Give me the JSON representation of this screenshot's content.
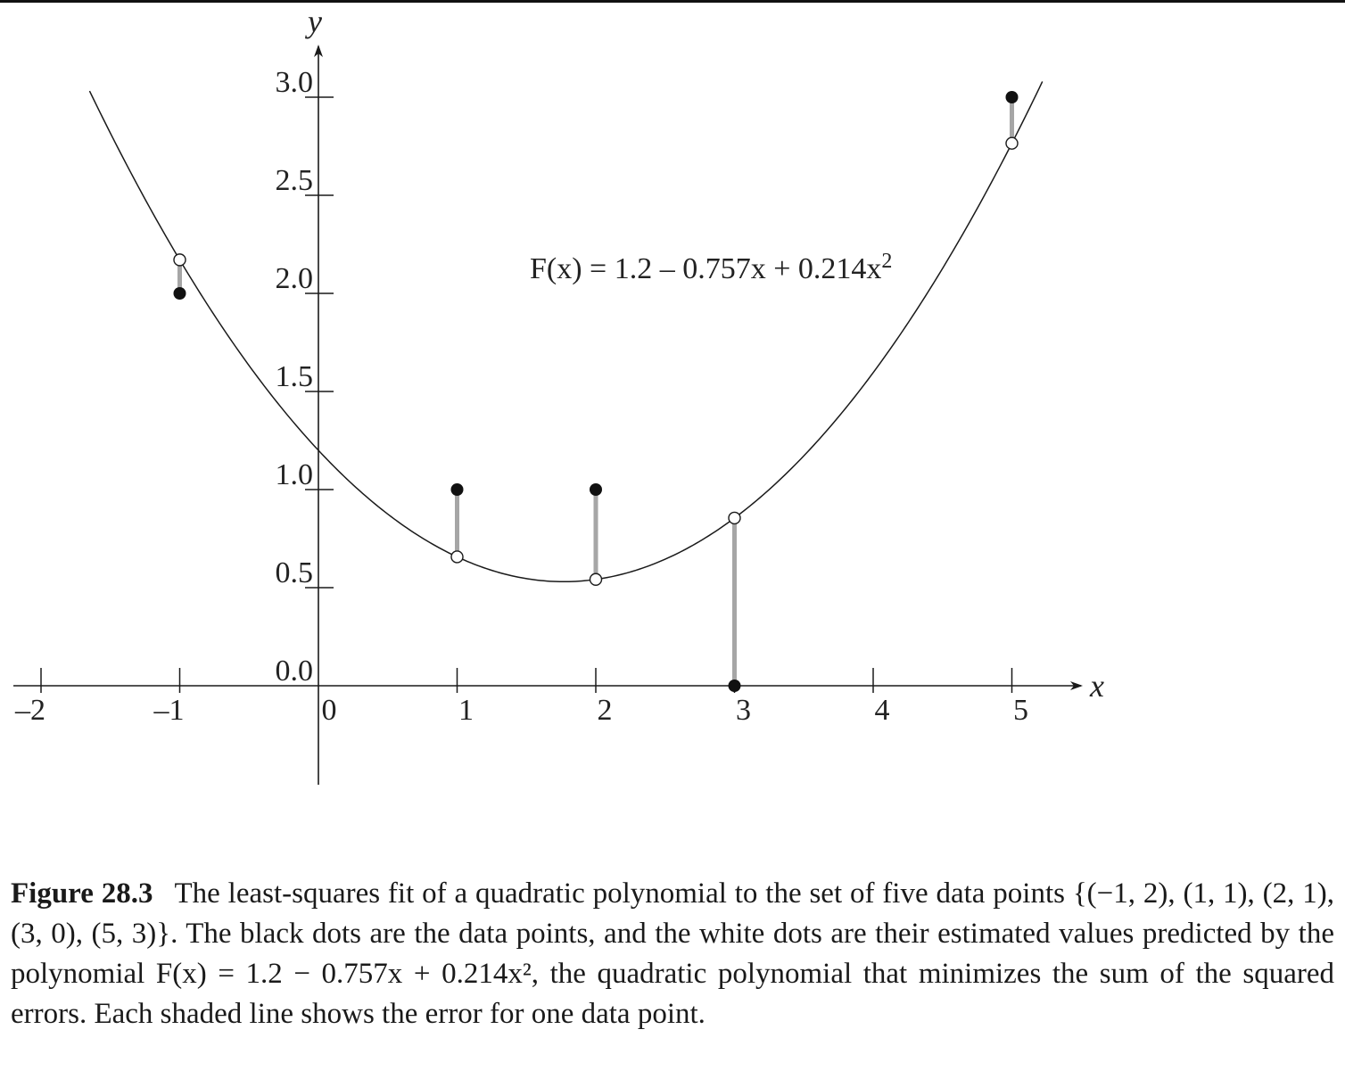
{
  "figure": {
    "caption_label": "Figure 28.3",
    "caption_text": "The least-squares fit of a quadratic polynomial to the set of five data points {(−1, 2), (1, 1), (2, 1), (3, 0), (5, 3)}. The black dots are the data points, and the white dots are their estimated values predicted by the polynomial F(x) = 1.2 − 0.757x + 0.214x², the quadratic polynomial that minimizes the sum of the squared errors. Each shaded line shows the error for one data point."
  },
  "chart_data": {
    "type": "scatter",
    "xlabel": "x",
    "ylabel": "y",
    "xlim": [
      -2,
      5
    ],
    "ylim": [
      0,
      3.0
    ],
    "x_ticks": [
      -2,
      -1,
      0,
      1,
      2,
      3,
      4,
      5
    ],
    "x_tick_labels": [
      "–2",
      "–1",
      "0",
      "1",
      "2",
      "3",
      "4",
      "5"
    ],
    "y_ticks": [
      0.0,
      0.5,
      1.0,
      1.5,
      2.0,
      2.5,
      3.0
    ],
    "y_tick_labels": [
      "0.0",
      "0.5",
      "1.0",
      "1.5",
      "2.0",
      "2.5",
      "3.0"
    ],
    "grid": false,
    "annotation": "F(x) = 1.2 – 0.757x + 0.214x",
    "annotation_exponent": "2",
    "curve": {
      "a0": 1.2,
      "a1": -0.757,
      "a2": 0.214,
      "x_range": [
        -1.65,
        5.22
      ]
    },
    "data_points": [
      {
        "x": -1,
        "y": 2
      },
      {
        "x": 1,
        "y": 1
      },
      {
        "x": 2,
        "y": 1
      },
      {
        "x": 3,
        "y": 0
      },
      {
        "x": 5,
        "y": 3
      }
    ],
    "colors": {
      "curve": "#1a1a1a",
      "error_line": "#a6a6a6",
      "data_dot": "#111111",
      "fit_dot": "#ffffff"
    }
  }
}
